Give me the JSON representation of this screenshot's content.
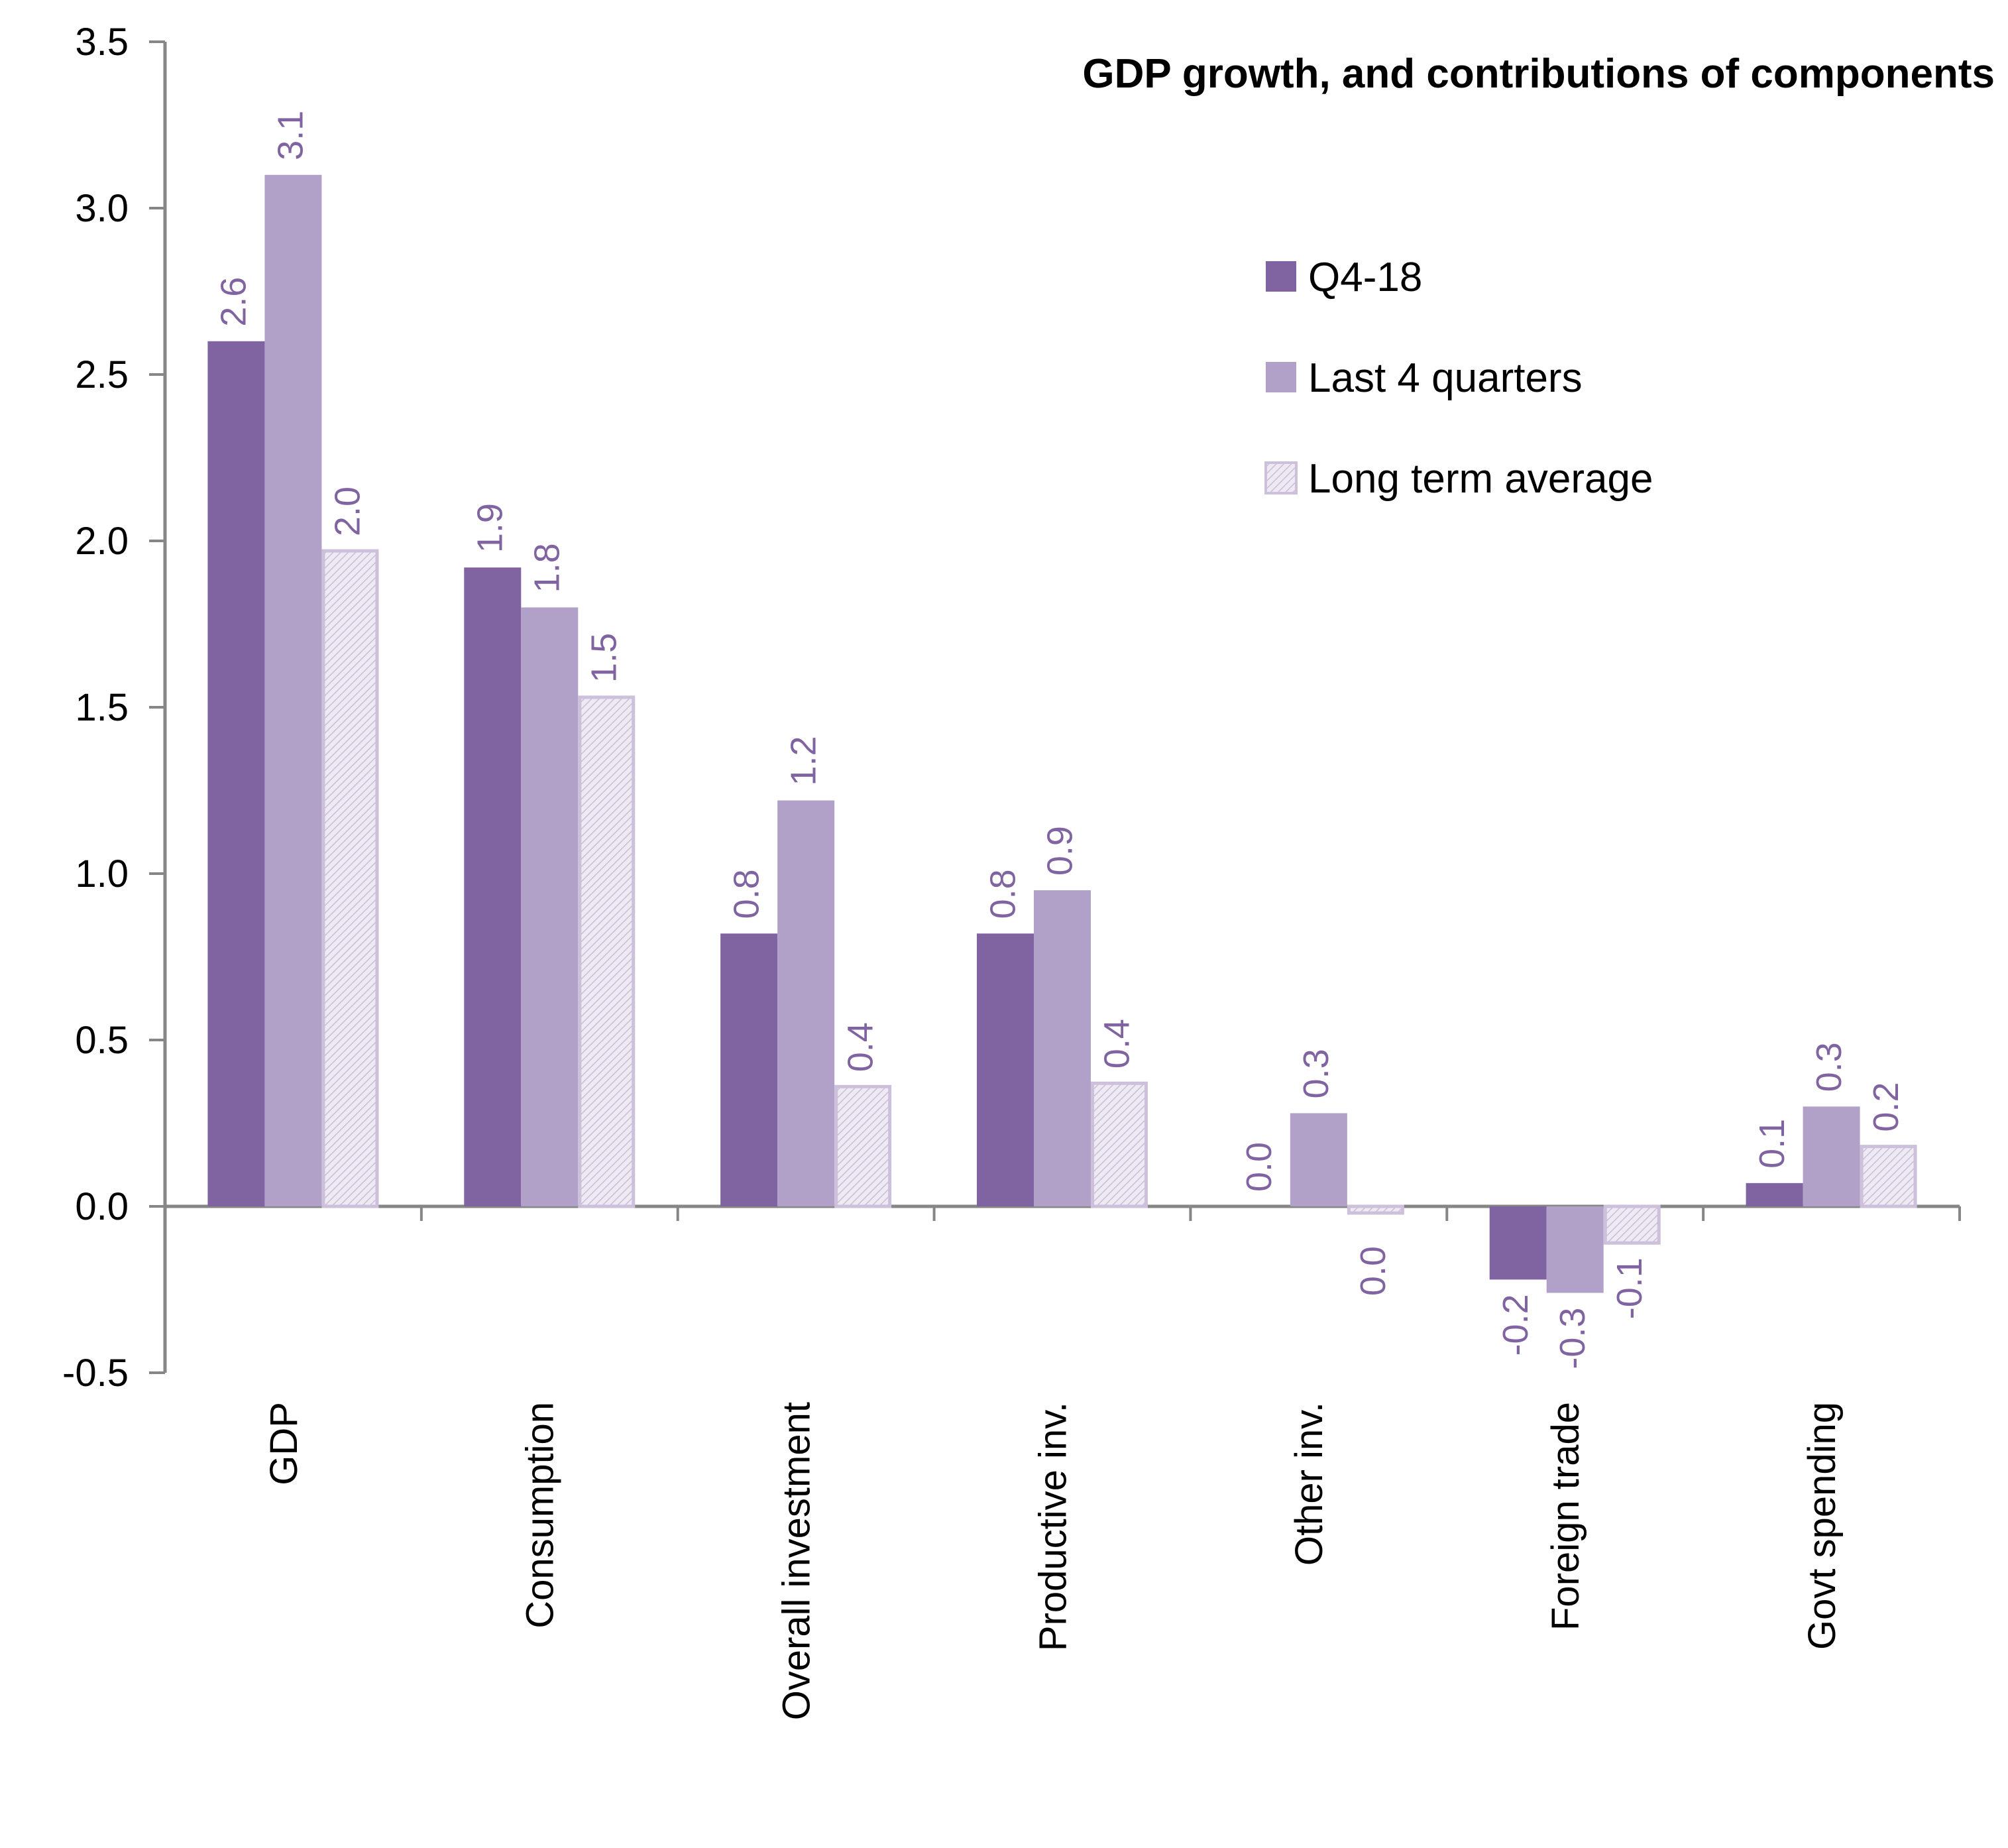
{
  "chart_data": {
    "type": "bar",
    "title": "GDP growth, and contributions of components",
    "xlabel": "",
    "ylabel": "",
    "ylim": [
      -0.5,
      3.5
    ],
    "yticks": [
      "3.5",
      "3.0",
      "2.5",
      "2.0",
      "1.5",
      "1.0",
      "0.5",
      "0.0",
      "-0.5"
    ],
    "ytick_values": [
      3.5,
      3.0,
      2.5,
      2.0,
      1.5,
      1.0,
      0.5,
      0.0,
      -0.5
    ],
    "grid": false,
    "legend_position": "top-right",
    "categories": [
      "GDP",
      "Consumption",
      "Overall investment",
      "Productive inv.",
      "Other inv.",
      "Foreign trade",
      "Govt spending"
    ],
    "series": [
      {
        "name": "Q4-18",
        "color": "#8064A2",
        "pattern": "solid",
        "values": [
          2.6,
          1.92,
          0.82,
          0.82,
          0.0,
          -0.22,
          0.07
        ],
        "labels": [
          "2.6",
          "1.9",
          "0.8",
          "0.8",
          "0.0",
          "-0.2",
          "0.1"
        ]
      },
      {
        "name": "Last 4 quarters",
        "color": "#B1A0C7",
        "pattern": "solid",
        "values": [
          3.1,
          1.8,
          1.22,
          0.95,
          0.28,
          -0.26,
          0.3
        ],
        "labels": [
          "3.1",
          "1.8",
          "1.2",
          "0.9",
          "0.3",
          "-0.3",
          "0.3"
        ]
      },
      {
        "name": "Long term average",
        "color": "#E6E0EC",
        "border_color": "#CCC0DA",
        "pattern": "hatched",
        "values": [
          1.97,
          1.53,
          0.36,
          0.37,
          -0.02,
          -0.11,
          0.18
        ],
        "labels": [
          "2.0",
          "1.5",
          "0.4",
          "0.4",
          "0.0",
          "-0.1",
          "0.2"
        ]
      }
    ],
    "data_label_color": "#8064A2",
    "axis_color": "#868686"
  }
}
